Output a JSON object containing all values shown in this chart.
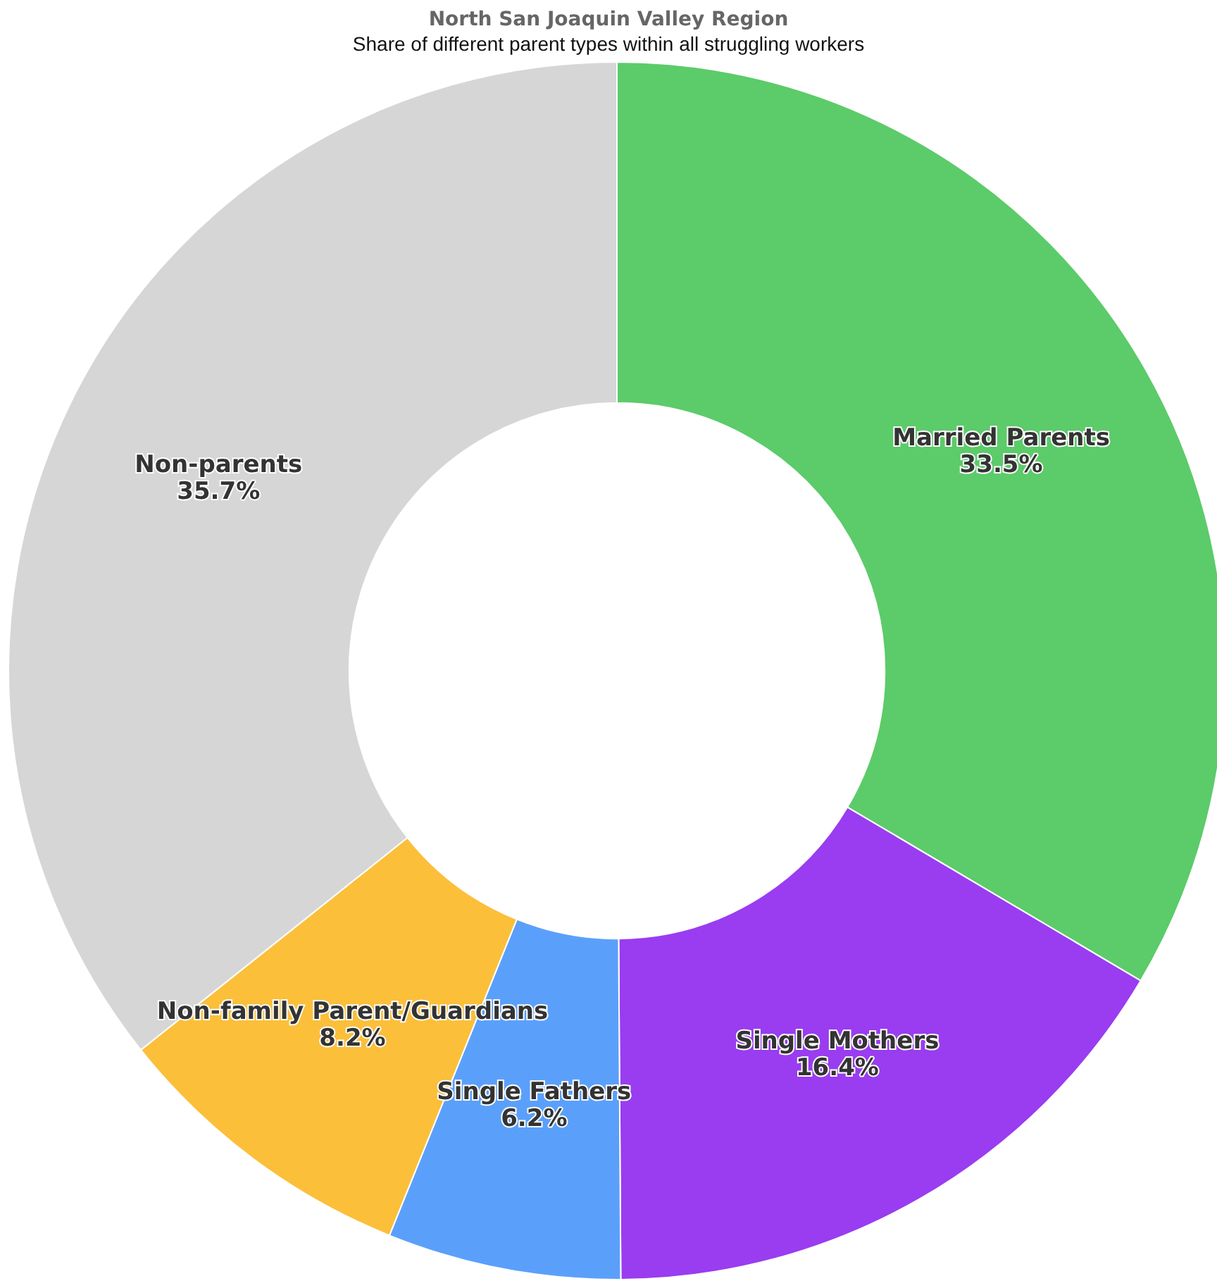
{
  "chart_data": {
    "type": "donut",
    "title": "North San Joaquin Valley Region",
    "subtitle": "Share of different parent types within all struggling workers",
    "categories": [
      "Married Parents",
      "Single Mothers",
      "Single Fathers",
      "Non-family Parent/Guardians",
      "Non-parents"
    ],
    "values": [
      33.5,
      16.4,
      6.2,
      8.2,
      35.7
    ],
    "value_labels": [
      "33.5%",
      "16.4%",
      "6.2%",
      "8.2%",
      "35.7%"
    ],
    "colors": [
      "#5ccb6a",
      "#9a3cf0",
      "#5aa0fb",
      "#fbbf3a",
      "#d6d6d6"
    ],
    "legend": false
  }
}
